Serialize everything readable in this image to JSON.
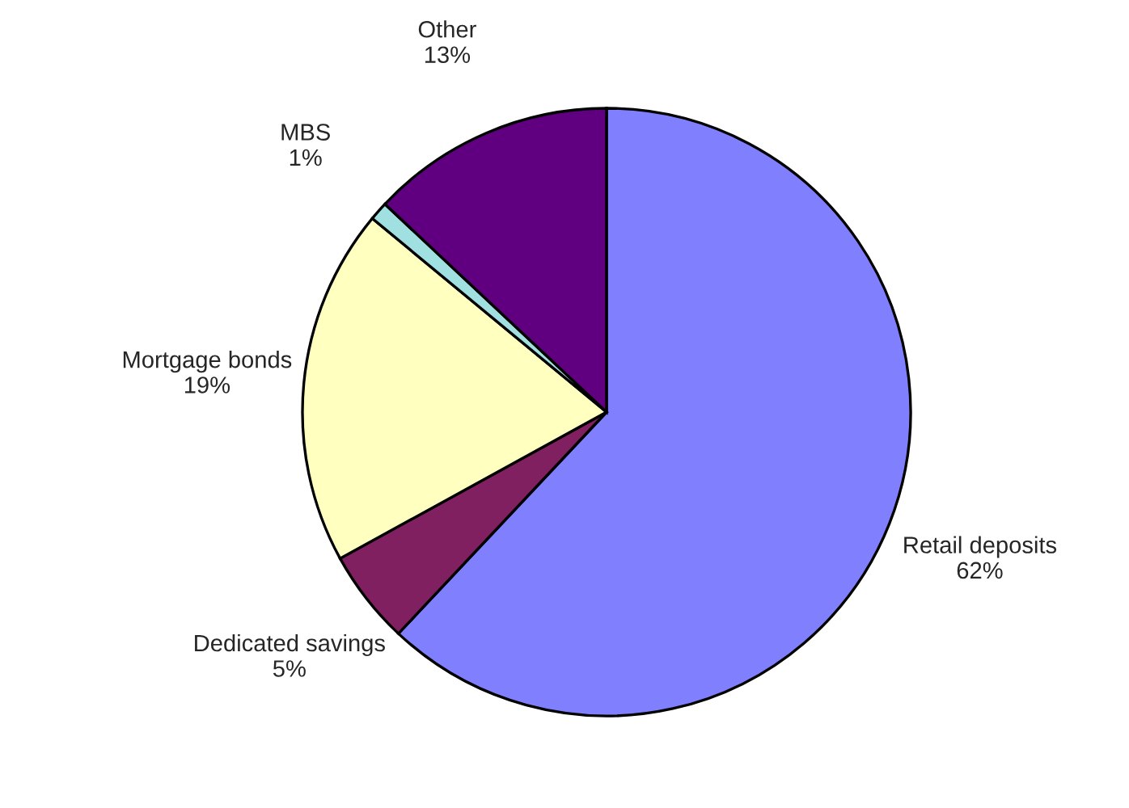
{
  "chart_data": {
    "type": "pie",
    "categories": [
      "Retail deposits",
      "Dedicated savings",
      "Mortgage bonds",
      "MBS",
      "Other"
    ],
    "values": [
      62,
      5,
      19,
      1,
      13
    ],
    "value_labels": [
      "62%",
      "5%",
      "19%",
      "1%",
      "13%"
    ],
    "colors": [
      "#8080ff",
      "#802060",
      "#ffffc0",
      "#a0e0e0",
      "#600080"
    ]
  }
}
